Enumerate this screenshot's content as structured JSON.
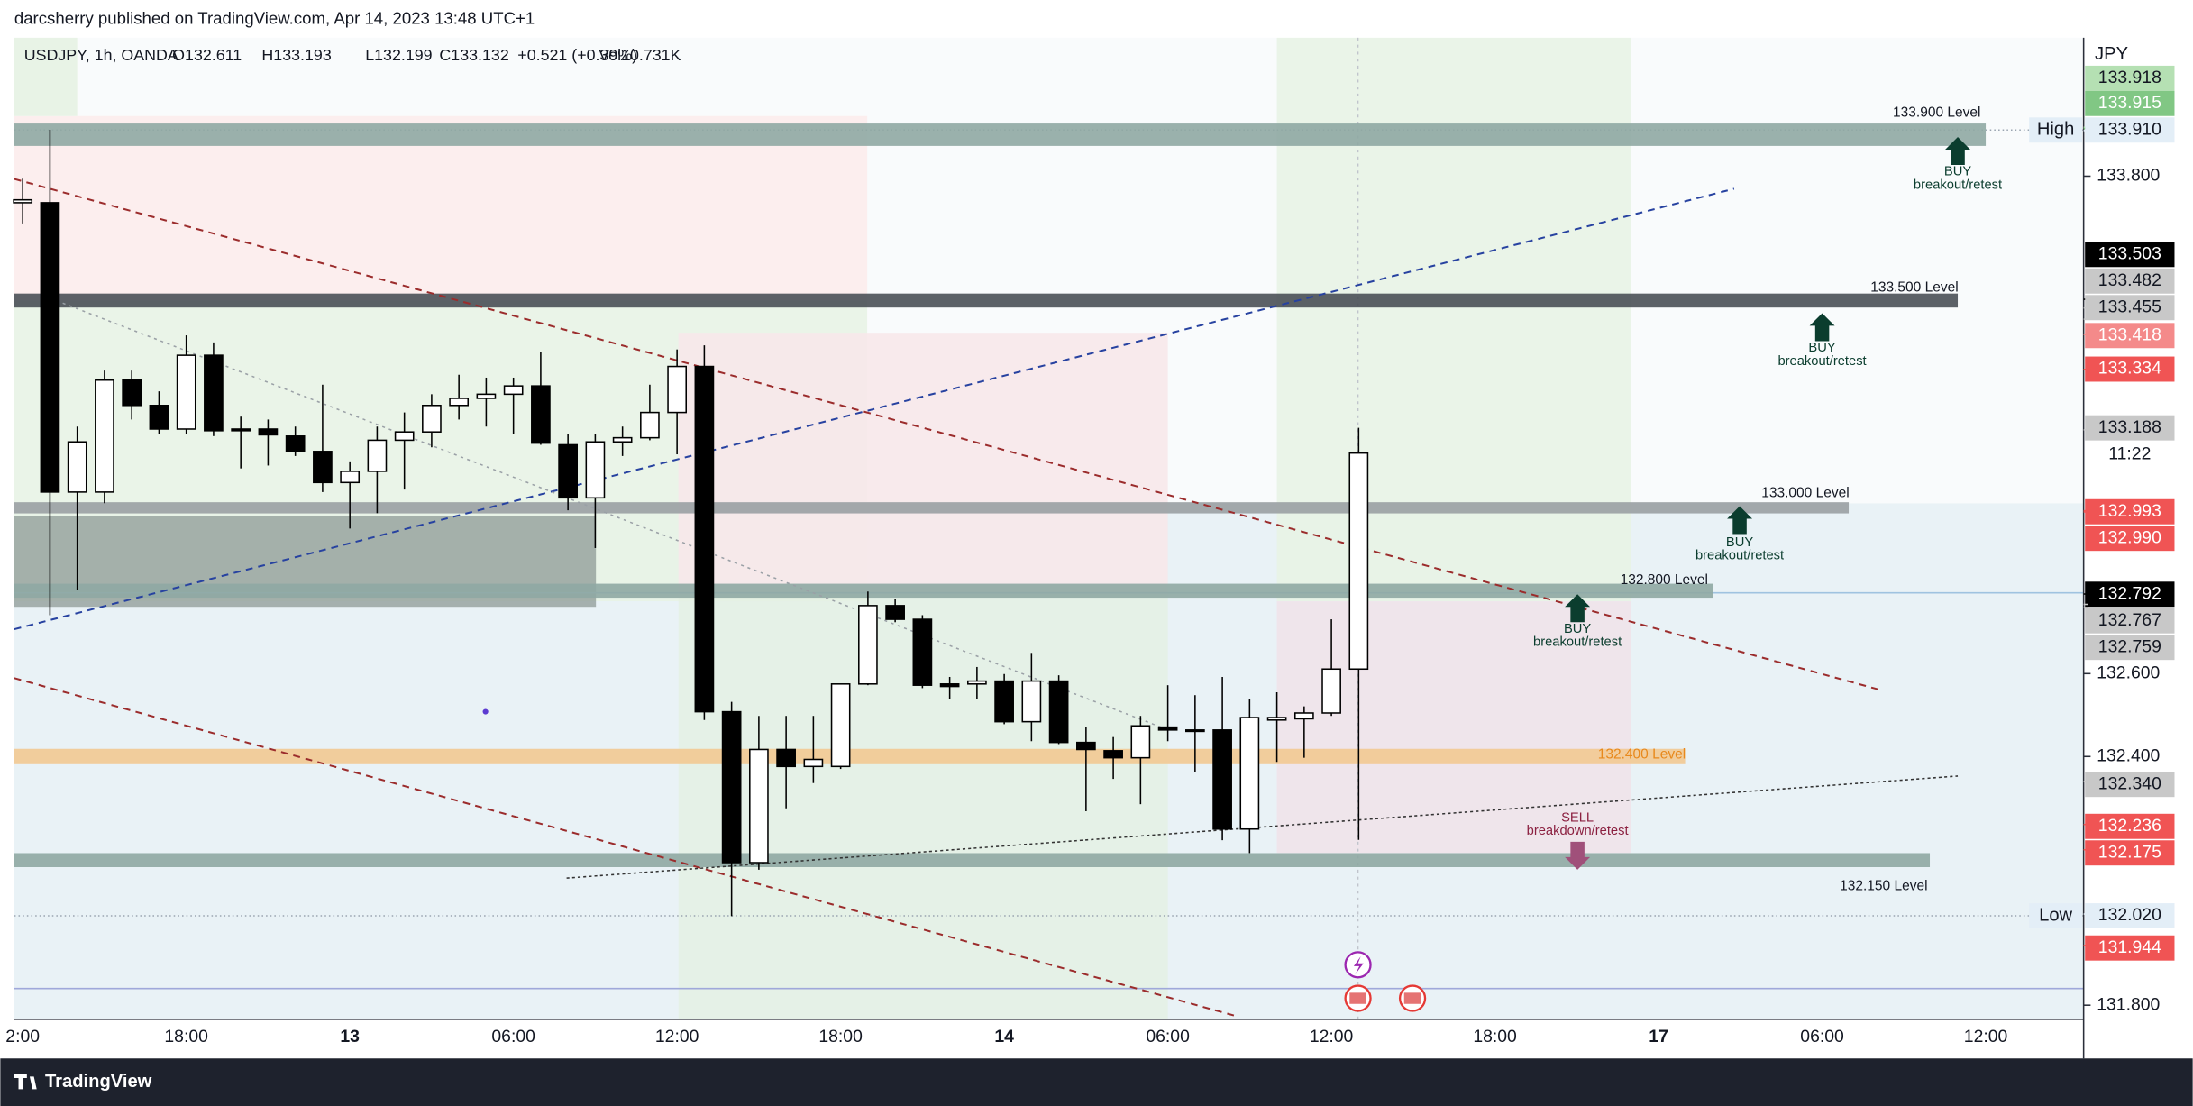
{
  "published": "darcsherry published on TradingView.com, Apr 14, 2023 13:48 UTC+1",
  "footer": "TradingView",
  "chart_data": {
    "type": "candlestick",
    "title": "USDJPY, 1h, OANDA",
    "legend_stats": [
      "O132.611",
      "H133.193",
      "L132.199",
      "C133.132",
      "+0.521 (+0.39%)",
      "Vol10.731K"
    ],
    "currency": "JPY",
    "categories": [
      "2:00",
      null,
      null,
      null,
      null,
      null,
      "18:00",
      null,
      null,
      null,
      null,
      null,
      "13",
      null,
      null,
      null,
      null,
      null,
      "06:00",
      null,
      null,
      null,
      null,
      null,
      "12:00",
      null,
      null,
      null,
      null,
      null,
      "18:00",
      null,
      null,
      null,
      null,
      null,
      "14",
      null,
      null,
      null,
      null,
      null,
      "06:00",
      null,
      null,
      null,
      null,
      null,
      "12:00",
      null,
      null,
      null,
      null,
      null,
      "18:00",
      null,
      null,
      null,
      null,
      null,
      "17",
      null,
      null,
      null,
      null,
      null,
      "06:00",
      null,
      null,
      null,
      null,
      null,
      "12:00",
      null,
      null,
      null
    ],
    "open": [
      133.736,
      133.736,
      133.038,
      133.038,
      133.308,
      133.247,
      133.19,
      133.368,
      133.19,
      133.19,
      133.173,
      133.136,
      133.061,
      133.088,
      133.163,
      133.183,
      133.247,
      133.264,
      133.274,
      133.294,
      133.152,
      133.024,
      133.159,
      133.169,
      133.23,
      133.341,
      132.508,
      132.144,
      132.417,
      132.376,
      132.376,
      132.575,
      132.764,
      132.731,
      132.575,
      132.575,
      132.582,
      132.484,
      132.582,
      132.434,
      132.414,
      132.397,
      132.471,
      132.464,
      132.464,
      132.225,
      132.488,
      132.491,
      132.505,
      132.611,
      null,
      null,
      null,
      null,
      null,
      null,
      null,
      null,
      null,
      null,
      null,
      null,
      null,
      null,
      null,
      null,
      null,
      null,
      null,
      null,
      null,
      null,
      null,
      null,
      null,
      null
    ],
    "high": [
      133.794,
      133.912,
      133.196,
      133.331,
      133.331,
      133.281,
      133.416,
      133.399,
      133.22,
      133.213,
      133.196,
      133.297,
      133.112,
      133.196,
      133.23,
      133.274,
      133.321,
      133.314,
      133.314,
      133.375,
      133.179,
      133.179,
      133.196,
      133.297,
      133.382,
      133.392,
      132.532,
      132.498,
      132.498,
      132.498,
      132.575,
      132.798,
      132.781,
      132.741,
      132.592,
      132.616,
      132.599,
      132.65,
      132.596,
      132.471,
      132.447,
      132.498,
      132.572,
      132.548,
      132.592,
      132.538,
      132.555,
      132.521,
      132.731,
      133.193,
      null,
      null,
      null,
      null,
      null,
      null,
      null,
      null,
      null,
      null,
      null,
      null,
      null,
      null,
      null,
      null,
      null,
      null,
      null,
      null,
      null,
      null,
      null,
      null,
      null,
      null
    ],
    "low": [
      133.686,
      132.741,
      132.802,
      133.011,
      133.213,
      133.179,
      133.179,
      133.173,
      133.095,
      133.102,
      133.125,
      133.038,
      132.95,
      132.987,
      133.044,
      133.146,
      133.213,
      133.196,
      133.179,
      133.152,
      132.994,
      132.903,
      133.125,
      133.163,
      133.129,
      132.488,
      132.015,
      132.127,
      132.275,
      132.336,
      132.37,
      132.572,
      132.724,
      132.565,
      132.538,
      132.538,
      132.478,
      132.437,
      132.43,
      132.268,
      132.346,
      132.285,
      132.437,
      132.363,
      132.198,
      132.167,
      132.387,
      132.397,
      132.498,
      132.199,
      null,
      null,
      null,
      null,
      null,
      null,
      null,
      null,
      null,
      null,
      null,
      null,
      null,
      null,
      null,
      null,
      null,
      null,
      null,
      null,
      null,
      null,
      null,
      null,
      null,
      null
    ],
    "close": [
      133.743,
      133.038,
      133.159,
      133.308,
      133.247,
      133.19,
      133.368,
      133.186,
      133.186,
      133.176,
      133.136,
      133.061,
      133.088,
      133.163,
      133.183,
      133.247,
      133.264,
      133.274,
      133.294,
      133.156,
      133.024,
      133.159,
      133.169,
      133.23,
      133.341,
      132.508,
      132.144,
      132.417,
      132.376,
      132.393,
      132.575,
      132.764,
      132.731,
      132.572,
      132.569,
      132.582,
      132.484,
      132.582,
      132.434,
      132.417,
      132.397,
      132.474,
      132.464,
      132.461,
      132.225,
      132.494,
      132.494,
      132.505,
      132.611,
      133.132,
      null,
      null,
      null,
      null,
      null,
      null,
      null,
      null,
      null,
      null,
      null,
      null,
      null,
      null,
      null,
      null,
      null,
      null,
      null,
      null,
      null,
      null,
      null,
      null,
      null,
      null
    ],
    "up_color": "#ffffff",
    "down_color": "#000000",
    "wick_color": "#000000",
    "ylim": [
      131.766,
      134.134
    ],
    "yticks": [
      {
        "value": 131.8,
        "label": "131.800"
      },
      {
        "value": 132.4,
        "label": "132.400"
      },
      {
        "value": 132.6,
        "label": "132.600"
      },
      {
        "value": 133.8,
        "label": "133.800"
      }
    ],
    "levels": [
      {
        "value": 133.9,
        "label": "133.900 Level",
        "color": "#8fa9a3",
        "label_color": "#131722"
      },
      {
        "value": 133.5,
        "label": "133.500 Level",
        "color": "#4a5057",
        "label_color": "#131722"
      },
      {
        "value": 133.0,
        "label": "133.000 Level",
        "color": "#9aa0a3",
        "label_color": "#131722"
      },
      {
        "value": 132.8,
        "label": "132.800 Level",
        "color": "#8fa9a3",
        "label_color": "#131722"
      },
      {
        "value": 132.4,
        "label": "132.400 Level",
        "color": "#f2c992",
        "label_color": "#e8891c"
      },
      {
        "value": 132.15,
        "label": "132.150 Level",
        "color": "#8fa9a3",
        "label_color": "#131722"
      }
    ],
    "annotations": [
      {
        "lines": [
          "BUY",
          "breakout/retest"
        ],
        "color": "#0b3d2e"
      },
      {
        "lines": [
          "BUY",
          "breakout/retest"
        ],
        "color": "#0b3d2e"
      },
      {
        "lines": [
          "BUY",
          "breakout/retest"
        ],
        "color": "#0b3d2e"
      },
      {
        "lines": [
          "BUY",
          "breakout/retest"
        ],
        "color": "#0b3d2e"
      },
      {
        "lines": [
          "SELL",
          "breakdown/retest"
        ],
        "color": "#8b2040"
      }
    ],
    "high_label": "High",
    "low_label": "Low",
    "price_tags": [
      {
        "value": 133.918,
        "label": "133.918",
        "color": "#b5e0b3",
        "text_color": "#131722"
      },
      {
        "value": 133.915,
        "label": "133.915",
        "color": "#81c784",
        "text_color": "#ffffff"
      },
      {
        "value": 133.91,
        "label": "133.910",
        "color": "#e3eef7",
        "text_color": "#131722"
      },
      {
        "value": 133.503,
        "label": "133.503",
        "color": "#000000",
        "text_color": "#ffffff"
      },
      {
        "value": 133.482,
        "label": "133.482",
        "color": "#c8c8c8",
        "text_color": "#131722"
      },
      {
        "value": 133.455,
        "label": "133.455",
        "color": "#c8c8c8",
        "text_color": "#131722"
      },
      {
        "value": 133.418,
        "label": "133.418",
        "color": "#f48a8a",
        "text_color": "#ffffff"
      },
      {
        "value": 133.334,
        "label": "133.334",
        "color": "#f05454",
        "text_color": "#ffffff"
      },
      {
        "value": 133.188,
        "label": "133.188",
        "color": "#c8c8c8",
        "text_color": "#131722"
      },
      {
        "label": "11:22",
        "color": "#ffffff",
        "text_color": "#131722"
      },
      {
        "value": 132.993,
        "label": "132.993",
        "color": "#f05454",
        "text_color": "#ffffff"
      },
      {
        "value": 132.99,
        "label": "132.990",
        "color": "#f05454",
        "text_color": "#ffffff"
      },
      {
        "value": 132.792,
        "label": "132.792",
        "color": "#000000",
        "text_color": "#ffffff"
      },
      {
        "value": 132.767,
        "label": "132.767",
        "color": "#c8c8c8",
        "text_color": "#131722"
      },
      {
        "value": 132.759,
        "label": "132.759",
        "color": "#c8c8c8",
        "text_color": "#131722"
      },
      {
        "value": 132.34,
        "label": "132.340",
        "color": "#c8c8c8",
        "text_color": "#131722"
      },
      {
        "value": 132.236,
        "label": "132.236",
        "color": "#f05454",
        "text_color": "#ffffff"
      },
      {
        "value": 132.175,
        "label": "132.175",
        "color": "#f05454",
        "text_color": "#ffffff"
      },
      {
        "value": 132.02,
        "label": "132.020",
        "color": "#e3eef7",
        "text_color": "#131722"
      },
      {
        "value": 131.944,
        "label": "131.944",
        "color": "#f05454",
        "text_color": "#ffffff"
      }
    ]
  }
}
